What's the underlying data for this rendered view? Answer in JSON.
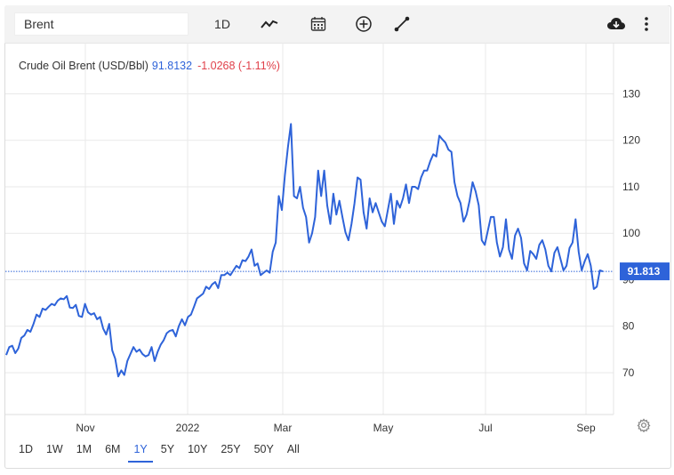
{
  "toolbar": {
    "symbol": "Brent",
    "interval": "1D",
    "icons": [
      "line-chart-icon",
      "calendar-icon",
      "add-comparison-icon",
      "draw-tool-icon",
      "download-icon",
      "more-options-icon"
    ]
  },
  "legend": {
    "name": "Crude Oil Brent (USD/Bbl)",
    "price": "91.8132",
    "change": "-1.0268 (-1.11%)"
  },
  "ranges": [
    "1D",
    "1W",
    "1M",
    "6M",
    "1Y",
    "5Y",
    "10Y",
    "25Y",
    "50Y",
    "All"
  ],
  "active_range": "1Y",
  "colors": {
    "line": "#2e63d9",
    "negative": "#e0404a",
    "label_bg": "#2e63d9"
  },
  "chart_data": {
    "type": "line",
    "series": [
      {
        "values": [
          73.8,
          75.5,
          75.8,
          74.2,
          75.2,
          77.5,
          78.0,
          79.2,
          78.8,
          80.5,
          82.5,
          82.0,
          83.8,
          83.5,
          84.2,
          84.8,
          84.5,
          85.5,
          86.0,
          85.8,
          86.5,
          84.0,
          83.9,
          84.6,
          82.2,
          82.0,
          84.8,
          83.0,
          82.5,
          82.8,
          81.5,
          82.0,
          79.5,
          78.2,
          80.5,
          74.8,
          73.0,
          69.2,
          70.5,
          69.5,
          72.5,
          74.0,
          75.5,
          74.5,
          75.0,
          74.0,
          73.5,
          73.8,
          75.5,
          72.5,
          74.5,
          76.0,
          77.0,
          78.5,
          79.0,
          79.2,
          77.8,
          80.0,
          81.5,
          80.2,
          82.0,
          82.5,
          84.2,
          86.0,
          86.5,
          87.0,
          88.5,
          88.0,
          89.0,
          89.5,
          88.2,
          91.0,
          91.0,
          91.5,
          91.0,
          92.0,
          93.0,
          92.5,
          94.2,
          94.0,
          95.0,
          96.5,
          93.0,
          93.5,
          91.0,
          91.5,
          92.0,
          91.5,
          96.0,
          98.0,
          108.0,
          105.0,
          112.5,
          118.5,
          123.5,
          108.0,
          107.5,
          110.0,
          105.5,
          103.5,
          98.0,
          100.0,
          103.5,
          113.5,
          108.0,
          113.5,
          106.0,
          102.0,
          108.5,
          104.0,
          107.0,
          103.5,
          100.2,
          98.5,
          102.0,
          106.5,
          112.0,
          111.5,
          104.5,
          101.0,
          107.5,
          104.5,
          106.5,
          104.5,
          102.5,
          101.5,
          105.0,
          108.5,
          102.0,
          107.0,
          105.5,
          107.5,
          110.5,
          106.5,
          110.0,
          110.0,
          109.5,
          112.0,
          113.5,
          113.5,
          115.5,
          117.0,
          116.5,
          121.0,
          120.2,
          119.5,
          118.0,
          117.5,
          111.0,
          108.0,
          106.5,
          102.5,
          104.0,
          107.0,
          111.0,
          109.0,
          106.0,
          98.5,
          97.5,
          100.5,
          103.5,
          103.5,
          98.0,
          95.0,
          97.0,
          103.0,
          96.5,
          94.5,
          99.5,
          101.0,
          99.0,
          93.5,
          92.0,
          96.2,
          95.5,
          94.5,
          97.5,
          98.5,
          96.5,
          93.0,
          91.8,
          95.8,
          97.0,
          94.5,
          92.0,
          93.0,
          96.8,
          98.0,
          103.0,
          96.0,
          92.0,
          94.0,
          95.5,
          93.0,
          88.0,
          88.5,
          92.0,
          91.8
        ]
      }
    ],
    "last_value_label": "91.813",
    "x_tick_labels": [
      "Nov",
      "2022",
      "Mar",
      "May",
      "Jul",
      "Sep"
    ],
    "y_tick_labels": [
      "70",
      "80",
      "90",
      "100",
      "110",
      "120",
      "130"
    ],
    "y_ticks": [
      70,
      80,
      90,
      100,
      110,
      120,
      130
    ],
    "ylim": [
      61,
      141
    ],
    "grid": true
  }
}
